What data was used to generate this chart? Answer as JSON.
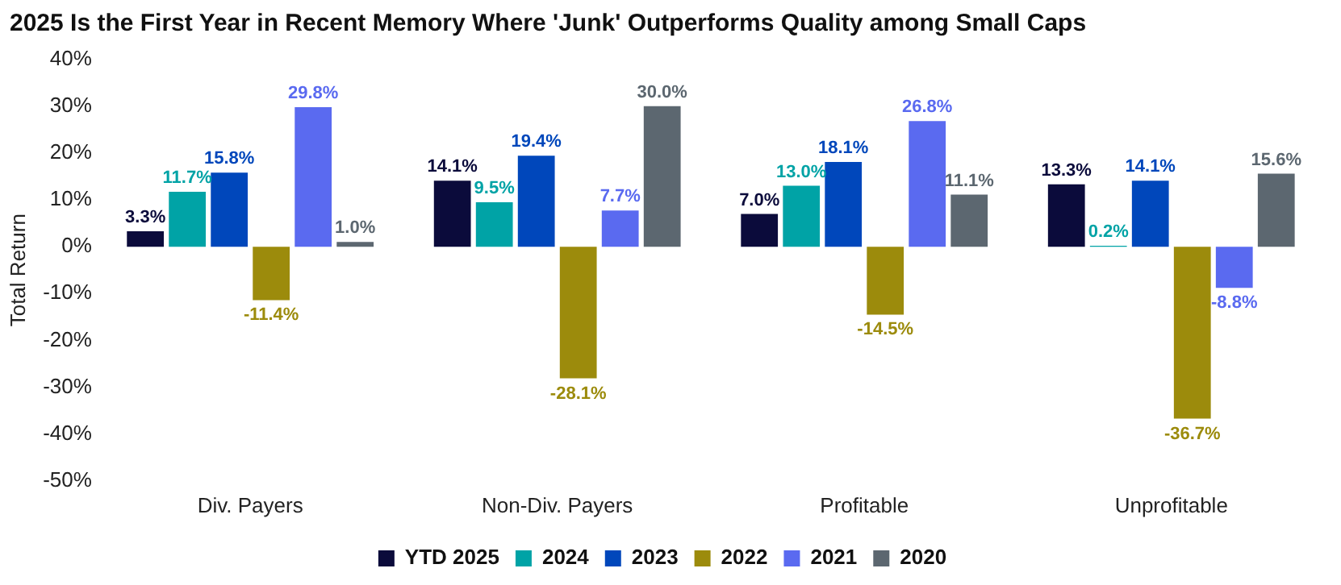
{
  "chart_data": {
    "type": "bar",
    "title": "2025 Is the First Year in Recent Memory Where 'Junk' Outperforms Quality among Small Caps",
    "ylabel": "Total Return",
    "categories": [
      "Div. Payers",
      "Non-Div. Payers",
      "Profitable",
      "Unprofitable"
    ],
    "series": [
      {
        "name": "YTD 2025",
        "color": "#0b0b3b",
        "values": [
          3.3,
          14.1,
          7.0,
          13.3
        ],
        "value_labels": [
          "3.3%",
          "14.1%",
          "7.0%",
          "13.3%"
        ]
      },
      {
        "name": "2024",
        "color": "#00a3a6",
        "values": [
          11.7,
          9.5,
          13.0,
          0.2
        ],
        "value_labels": [
          "11.7%",
          "9.5%",
          "13.0%",
          "0.2%"
        ]
      },
      {
        "name": "2023",
        "color": "#0047bb",
        "values": [
          15.8,
          19.4,
          18.1,
          14.1
        ],
        "value_labels": [
          "15.8%",
          "19.4%",
          "18.1%",
          "14.1%"
        ]
      },
      {
        "name": "2022",
        "color": "#9c8b0c",
        "values": [
          -11.4,
          -28.1,
          -14.5,
          -36.7
        ],
        "value_labels": [
          "-11.4%",
          "-28.1%",
          "-14.5%",
          "-36.7%"
        ]
      },
      {
        "name": "2021",
        "color": "#5a6af0",
        "values": [
          29.8,
          7.7,
          26.8,
          -8.8
        ],
        "value_labels": [
          "29.8%",
          "7.7%",
          "26.8%",
          "-8.8%"
        ]
      },
      {
        "name": "2020",
        "color": "#5c6770",
        "values": [
          1.0,
          30.0,
          11.1,
          15.6
        ],
        "value_labels": [
          "1.0%",
          "30.0%",
          "11.1%",
          "15.6%"
        ]
      }
    ],
    "ylim": [
      -50,
      40
    ],
    "yticks": [
      {
        "value": -50,
        "label": "-50%"
      },
      {
        "value": -40,
        "label": "-40%"
      },
      {
        "value": -30,
        "label": "-30%"
      },
      {
        "value": -20,
        "label": "-20%"
      },
      {
        "value": -10,
        "label": "-10%"
      },
      {
        "value": 0,
        "label": "0%"
      },
      {
        "value": 10,
        "label": "10%"
      },
      {
        "value": 20,
        "label": "20%"
      },
      {
        "value": 30,
        "label": "30%"
      },
      {
        "value": 40,
        "label": "40%"
      }
    ],
    "grid": false,
    "legend": "bottom"
  }
}
